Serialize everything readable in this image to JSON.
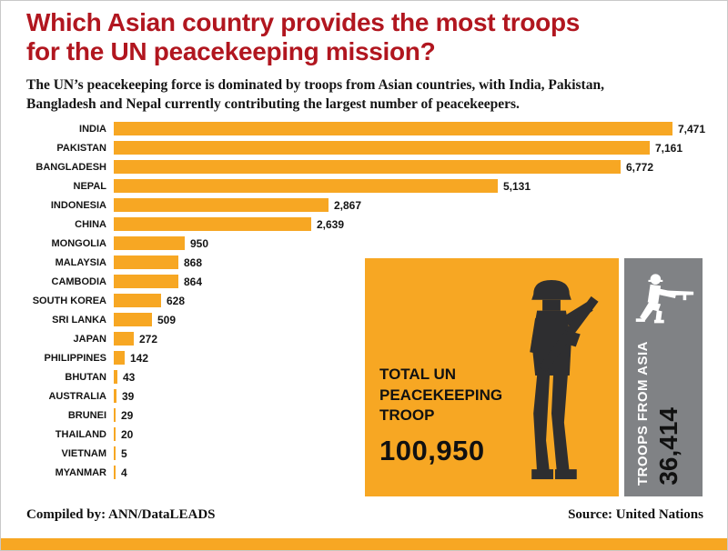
{
  "page": {
    "title_line1": "Which Asian country provides the most troops",
    "title_line2": "for the UN peacekeeping mission?",
    "subtitle": "The UN’s peacekeeping force is dominated by troops from Asian countries, with India, Pakistan, Bangladesh and Nepal currently contributing the largest number of peacekeepers.",
    "footer_left": "Compiled by: ANN/DataLEADS",
    "footer_right": "Source: United Nations"
  },
  "colors": {
    "bar_orange": "#f7a723",
    "title_red": "#b1161f",
    "panel_gray": "#808285"
  },
  "icons": {
    "total_panel": "standing-soldier-icon",
    "asia_panel": "kneeling-soldier-icon"
  },
  "total_panel": {
    "label_line1": "TOTAL UN",
    "label_line2": "PEACEKEEPING",
    "label_line3": "TROOP",
    "value": "100,950"
  },
  "asia_panel": {
    "label": "TROOPS FROM ASIA",
    "value": "36,414"
  },
  "chart_data": {
    "type": "bar",
    "orientation": "horizontal",
    "title": "Which Asian country provides the most troops for the UN peacekeeping mission?",
    "xlabel": "",
    "ylabel": "",
    "xlim": [
      0,
      7471
    ],
    "grid": false,
    "legend": "none",
    "categories": [
      "INDIA",
      "PAKISTAN",
      "BANGLADESH",
      "NEPAL",
      "INDONESIA",
      "CHINA",
      "MONGOLIA",
      "MALAYSIA",
      "CAMBODIA",
      "SOUTH KOREA",
      "SRI LANKA",
      "JAPAN",
      "PHILIPPINES",
      "BHUTAN",
      "AUSTRALIA",
      "BRUNEI",
      "THAILAND",
      "VIETNAM",
      "MYANMAR"
    ],
    "values": [
      7471,
      7161,
      6772,
      5131,
      2867,
      2639,
      950,
      868,
      864,
      628,
      509,
      272,
      142,
      43,
      39,
      29,
      20,
      5,
      4
    ],
    "value_labels": [
      "7,471",
      "7,161",
      "6,772",
      "5,131",
      "2,867",
      "2,639",
      "950",
      "868",
      "864",
      "628",
      "509",
      "272",
      "142",
      "43",
      "39",
      "29",
      "20",
      "5",
      "4"
    ]
  }
}
